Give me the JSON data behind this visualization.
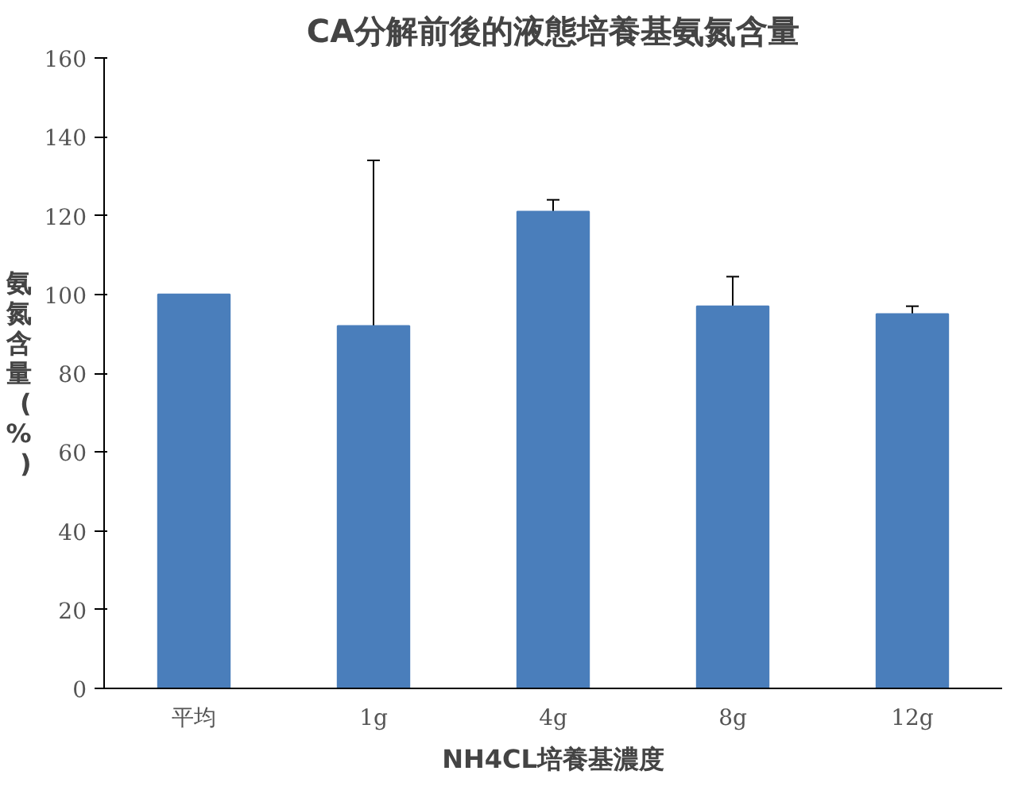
{
  "chart_data": {
    "type": "bar",
    "title": "CA分解前後的液態培養基氨氮含量",
    "xlabel": "NH4CL培養基濃度",
    "ylabel": "氨氮含量(%)",
    "categories": [
      "平均",
      "1g",
      "4g",
      "8g",
      "12g"
    ],
    "values": [
      100,
      92,
      121,
      97,
      95
    ],
    "errors": [
      null,
      42,
      3,
      7.5,
      2
    ],
    "color": "#4a7ebb",
    "ylim": [
      0,
      160
    ],
    "yticks": [
      0,
      20,
      40,
      60,
      80,
      100,
      120,
      140,
      160
    ],
    "grid": false
  }
}
